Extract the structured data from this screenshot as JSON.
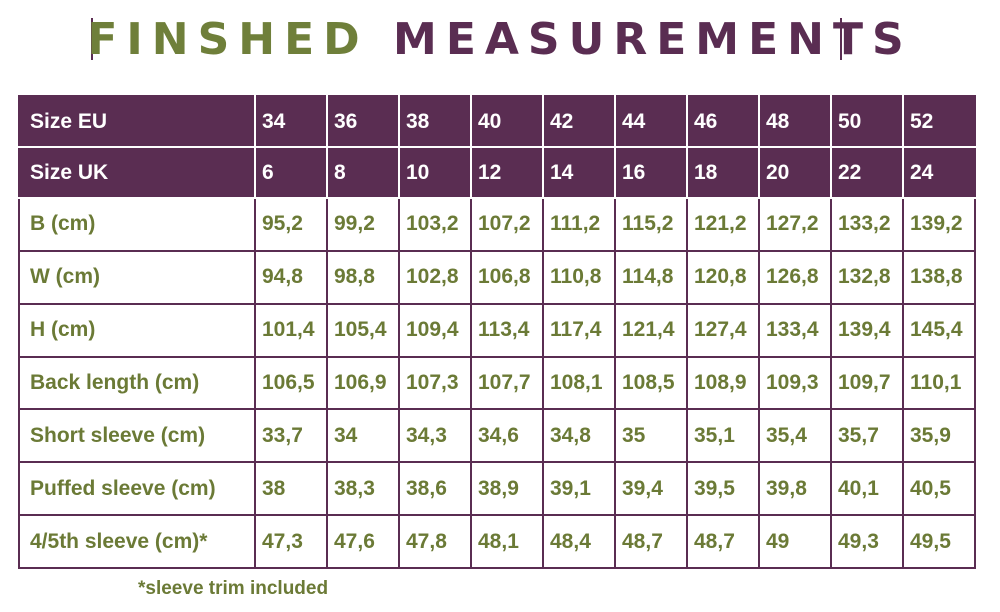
{
  "title": {
    "part1": "FINSHED",
    "part2": "MEASUREMENTS"
  },
  "colors": {
    "purple": "#5a2d52",
    "green": "#6b7a36"
  },
  "table": {
    "header_rows": [
      {
        "label": "Size EU",
        "values": [
          "34",
          "36",
          "38",
          "40",
          "42",
          "44",
          "46",
          "48",
          "50",
          "52"
        ]
      },
      {
        "label": "Size UK",
        "values": [
          "6",
          "8",
          "10",
          "12",
          "14",
          "16",
          "18",
          "20",
          "22",
          "24"
        ]
      }
    ],
    "rows": [
      {
        "label": "B (cm)",
        "values": [
          "95,2",
          "99,2",
          "103,2",
          "107,2",
          "111,2",
          "115,2",
          "121,2",
          "127,2",
          "133,2",
          "139,2"
        ]
      },
      {
        "label": "W (cm)",
        "values": [
          "94,8",
          "98,8",
          "102,8",
          "106,8",
          "110,8",
          "114,8",
          "120,8",
          "126,8",
          "132,8",
          "138,8"
        ]
      },
      {
        "label": "H (cm)",
        "values": [
          "101,4",
          "105,4",
          "109,4",
          "113,4",
          "117,4",
          "121,4",
          "127,4",
          "133,4",
          "139,4",
          "145,4"
        ]
      },
      {
        "label": "Back length (cm)",
        "values": [
          "106,5",
          "106,9",
          "107,3",
          "107,7",
          "108,1",
          "108,5",
          "108,9",
          "109,3",
          "109,7",
          "110,1"
        ]
      },
      {
        "label": "Short sleeve (cm)",
        "values": [
          "33,7",
          "34",
          "34,3",
          "34,6",
          "34,8",
          "35",
          "35,1",
          "35,4",
          "35,7",
          "35,9"
        ]
      },
      {
        "label": "Puffed sleeve (cm)",
        "values": [
          "38",
          "38,3",
          "38,6",
          "38,9",
          "39,1",
          "39,4",
          "39,5",
          "39,8",
          "40,1",
          "40,5"
        ]
      },
      {
        "label": "4/5th sleeve (cm)*",
        "values": [
          "47,3",
          "47,6",
          "47,8",
          "48,1",
          "48,4",
          "48,7",
          "48,7",
          "49",
          "49,3",
          "49,5"
        ]
      }
    ]
  },
  "footnote": "*sleeve trim included"
}
